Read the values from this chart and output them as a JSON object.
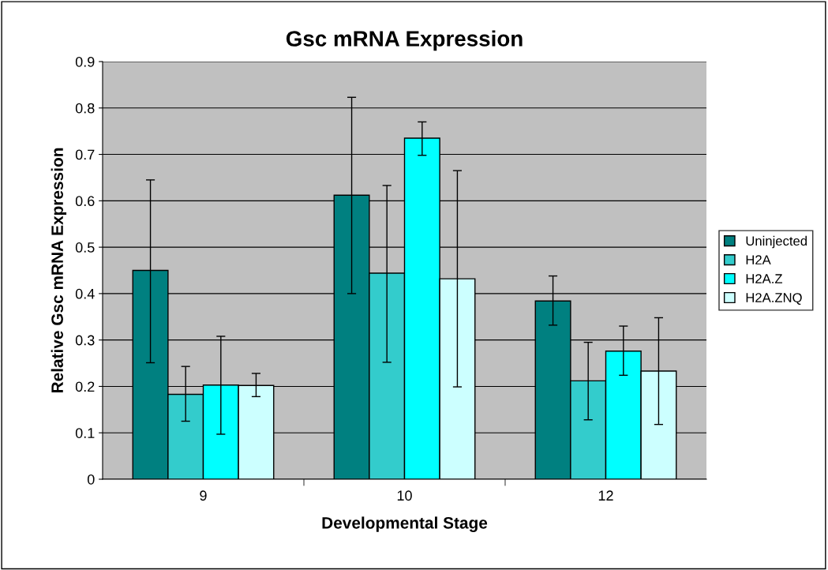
{
  "chart_data": {
    "type": "bar",
    "title": "Gsc mRNA Expression",
    "xlabel": "Developmental Stage",
    "ylabel": "Relative Gsc mRNA Expression",
    "categories": [
      "9",
      "10",
      "12"
    ],
    "series": [
      {
        "name": "Uninjected",
        "color": "#008080",
        "values": [
          0.45,
          0.612,
          0.384
        ],
        "errors": [
          [
            0.251,
            0.645
          ],
          [
            0.4,
            0.823
          ],
          [
            0.332,
            0.438
          ]
        ]
      },
      {
        "name": "H2A",
        "color": "#33cccc",
        "values": [
          0.183,
          0.444,
          0.212
        ],
        "errors": [
          [
            0.125,
            0.243
          ],
          [
            0.252,
            0.633
          ],
          [
            0.128,
            0.295
          ]
        ]
      },
      {
        "name": "H2A.Z",
        "color": "#00ffff",
        "values": [
          0.203,
          0.735,
          0.276
        ],
        "errors": [
          [
            0.097,
            0.308
          ],
          [
            0.698,
            0.77
          ],
          [
            0.224,
            0.33
          ]
        ]
      },
      {
        "name": "H2A.ZNQ",
        "color": "#ccffff",
        "values": [
          0.202,
          0.432,
          0.233
        ],
        "errors": [
          [
            0.178,
            0.228
          ],
          [
            0.199,
            0.665
          ],
          [
            0.118,
            0.348
          ]
        ]
      }
    ],
    "ylim": [
      0,
      0.9
    ],
    "yticks": [
      0,
      0.1,
      0.2,
      0.3,
      0.4,
      0.5,
      0.6,
      0.7,
      0.8,
      0.9
    ],
    "grid": "y",
    "legend": "right"
  }
}
